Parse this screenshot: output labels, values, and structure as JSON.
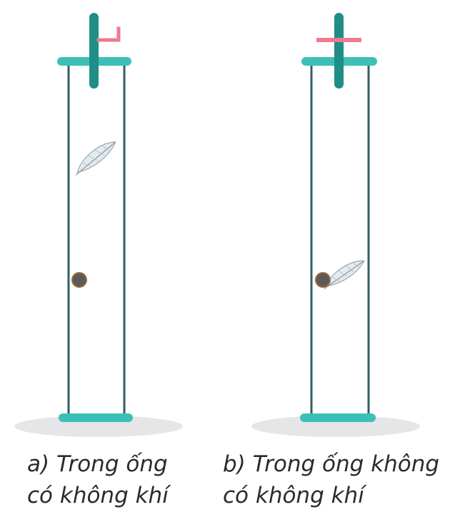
{
  "panels": [
    {
      "id": "a",
      "caption_line1": "a) Trong ống",
      "caption_line2": "có không khí",
      "valve": "open"
    },
    {
      "id": "b",
      "caption_line1": "b) Trong ống không",
      "caption_line2": "có không khí",
      "valve": "closed"
    }
  ],
  "colors": {
    "tube": "#2f5f62",
    "cap": "#3cbfb6",
    "stem": "#1e8e86",
    "valve": "#ef7a90",
    "ball": "#5a5a5a",
    "ball_edge": "#9a6a3a",
    "shadow": "#e6e6e8",
    "feather": "#d9e1e6",
    "feather_shade": "#9aa8b0"
  }
}
